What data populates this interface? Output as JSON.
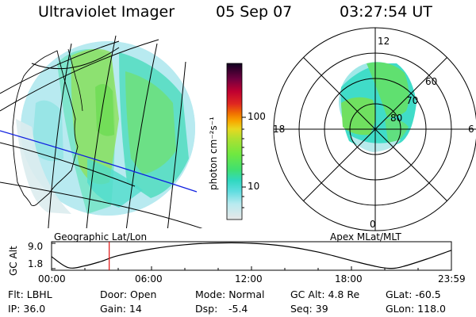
{
  "header": {
    "instrument": "Ultraviolet Imager",
    "date": "05 Sep 07",
    "time": "03:27:54 UT"
  },
  "left_panel": {
    "label": "Geographic Lat/Lon"
  },
  "right_panel": {
    "label": "Apex MLat/MLT",
    "mlt_labels": {
      "top": "12",
      "left": "18",
      "right": "6",
      "bottom": "0"
    },
    "lat_labels": [
      "60",
      "70",
      "80"
    ]
  },
  "colorbar": {
    "unit_label": "photon cm⁻²s⁻¹",
    "ticks": [
      "100",
      "10"
    ],
    "colors": [
      "#e8e8e8",
      "#c8ecf0",
      "#80e0e8",
      "#30d8d8",
      "#30e0a0",
      "#40e060",
      "#80e830",
      "#c0e030",
      "#f0d020",
      "#f8a000",
      "#f06000",
      "#e02020",
      "#c00030",
      "#800040",
      "#400040",
      "#100020"
    ]
  },
  "altitude_plot": {
    "ylabel": "GC Alt",
    "y_ticks": [
      "9.0",
      "1.8"
    ],
    "y_range": [
      1.8,
      9.0
    ],
    "x_ticks": [
      "00:00",
      "06:00",
      "12:00",
      "18:00",
      "23:59"
    ],
    "current_hour": 3.46,
    "curve": [
      [
        0,
        5.2
      ],
      [
        1,
        2.1
      ],
      [
        2,
        2.6
      ],
      [
        3,
        3.9
      ],
      [
        4,
        5.5
      ],
      [
        6,
        7.4
      ],
      [
        8,
        8.6
      ],
      [
        10,
        9.1
      ],
      [
        12,
        9.0
      ],
      [
        14,
        8.2
      ],
      [
        16,
        6.5
      ],
      [
        18,
        4.1
      ],
      [
        19.5,
        2.4
      ],
      [
        20.3,
        1.9
      ],
      [
        21,
        2.3
      ],
      [
        22.5,
        4.5
      ],
      [
        23.98,
        7.0
      ]
    ]
  },
  "info": {
    "filter": "Flt: LBHL",
    "door": "Door: Open",
    "mode": "Mode: Normal",
    "gc_alt": "GC Alt: 4.8 Re",
    "glat": "GLat: -60.5",
    "ip": "IP: 36.0",
    "gain": "Gain: 14",
    "dsp_label": "Dsp:",
    "dsp_value": "-5.4",
    "seq": "Seq: 39",
    "glon": "GLon: 118.0"
  }
}
